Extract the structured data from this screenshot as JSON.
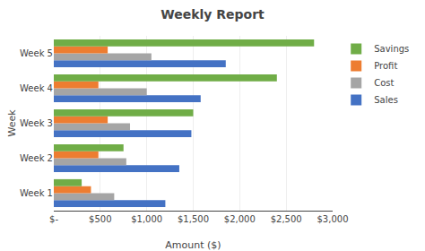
{
  "chart_data": {
    "type": "bar",
    "orientation": "horizontal",
    "title": "Weekly Report",
    "xlabel": "Amount ($)",
    "ylabel": "Week",
    "categories": [
      "Week 1",
      "Week 2",
      "Week 3",
      "Week 4",
      "Week 5"
    ],
    "series": [
      {
        "name": "Sales",
        "color": "#4472C4",
        "values": [
          1200,
          1350,
          1480,
          1580,
          1850
        ]
      },
      {
        "name": "Cost",
        "color": "#A5A5A5",
        "values": [
          650,
          780,
          820,
          1000,
          1050
        ]
      },
      {
        "name": "Profit",
        "color": "#ED7D31",
        "values": [
          400,
          480,
          580,
          480,
          580
        ]
      },
      {
        "name": "Savings",
        "color": "#70AD47",
        "values": [
          300,
          750,
          1500,
          2400,
          2800
        ]
      }
    ],
    "xlim": [
      0,
      3000
    ],
    "xticks": [
      {
        "value": 0,
        "label": "$-"
      },
      {
        "value": 500,
        "label": "$500"
      },
      {
        "value": 1000,
        "label": "$1,000"
      },
      {
        "value": 1500,
        "label": "$1,500"
      },
      {
        "value": 2000,
        "label": "$2,000"
      },
      {
        "value": 2500,
        "label": "$2,500"
      },
      {
        "value": 3000,
        "label": "$3,000"
      }
    ],
    "grid": true,
    "legend": "upper right"
  }
}
